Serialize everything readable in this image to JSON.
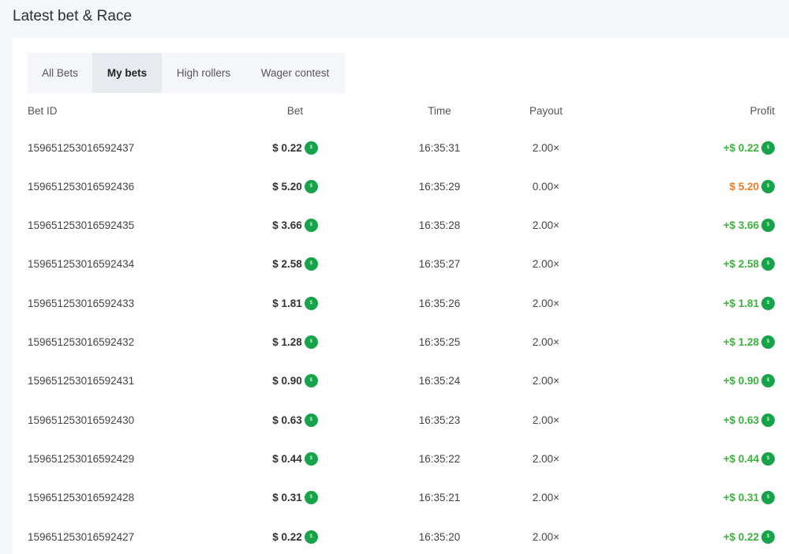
{
  "title": "Latest bet & Race",
  "tabs": [
    {
      "label": "All Bets",
      "active": false
    },
    {
      "label": "My bets",
      "active": true
    },
    {
      "label": "High rollers",
      "active": false
    },
    {
      "label": "Wager contest",
      "active": false
    }
  ],
  "columns": {
    "id": "Bet ID",
    "bet": "Bet",
    "time": "Time",
    "payout": "Payout",
    "profit": "Profit"
  },
  "colors": {
    "win": "#3cb23c",
    "loss": "#f07a22",
    "coin": "#17a34a"
  },
  "rows": [
    {
      "id": "159651253016592437",
      "bet": "$ 0.22",
      "time": "16:35:31",
      "payout": "2.00×",
      "profit": "+$ 0.22",
      "win": true
    },
    {
      "id": "159651253016592436",
      "bet": "$ 5.20",
      "time": "16:35:29",
      "payout": "0.00×",
      "profit": "$ 5.20",
      "win": false
    },
    {
      "id": "159651253016592435",
      "bet": "$ 3.66",
      "time": "16:35:28",
      "payout": "2.00×",
      "profit": "+$ 3.66",
      "win": true
    },
    {
      "id": "159651253016592434",
      "bet": "$ 2.58",
      "time": "16:35:27",
      "payout": "2.00×",
      "profit": "+$ 2.58",
      "win": true
    },
    {
      "id": "159651253016592433",
      "bet": "$ 1.81",
      "time": "16:35:26",
      "payout": "2.00×",
      "profit": "+$ 1.81",
      "win": true
    },
    {
      "id": "159651253016592432",
      "bet": "$ 1.28",
      "time": "16:35:25",
      "payout": "2.00×",
      "profit": "+$ 1.28",
      "win": true
    },
    {
      "id": "159651253016592431",
      "bet": "$ 0.90",
      "time": "16:35:24",
      "payout": "2.00×",
      "profit": "+$ 0.90",
      "win": true
    },
    {
      "id": "159651253016592430",
      "bet": "$ 0.63",
      "time": "16:35:23",
      "payout": "2.00×",
      "profit": "+$ 0.63",
      "win": true
    },
    {
      "id": "159651253016592429",
      "bet": "$ 0.44",
      "time": "16:35:22",
      "payout": "2.00×",
      "profit": "+$ 0.44",
      "win": true
    },
    {
      "id": "159651253016592428",
      "bet": "$ 0.31",
      "time": "16:35:21",
      "payout": "2.00×",
      "profit": "+$ 0.31",
      "win": true
    },
    {
      "id": "159651253016592427",
      "bet": "$ 0.22",
      "time": "16:35:20",
      "payout": "2.00×",
      "profit": "+$ 0.22",
      "win": true
    }
  ]
}
